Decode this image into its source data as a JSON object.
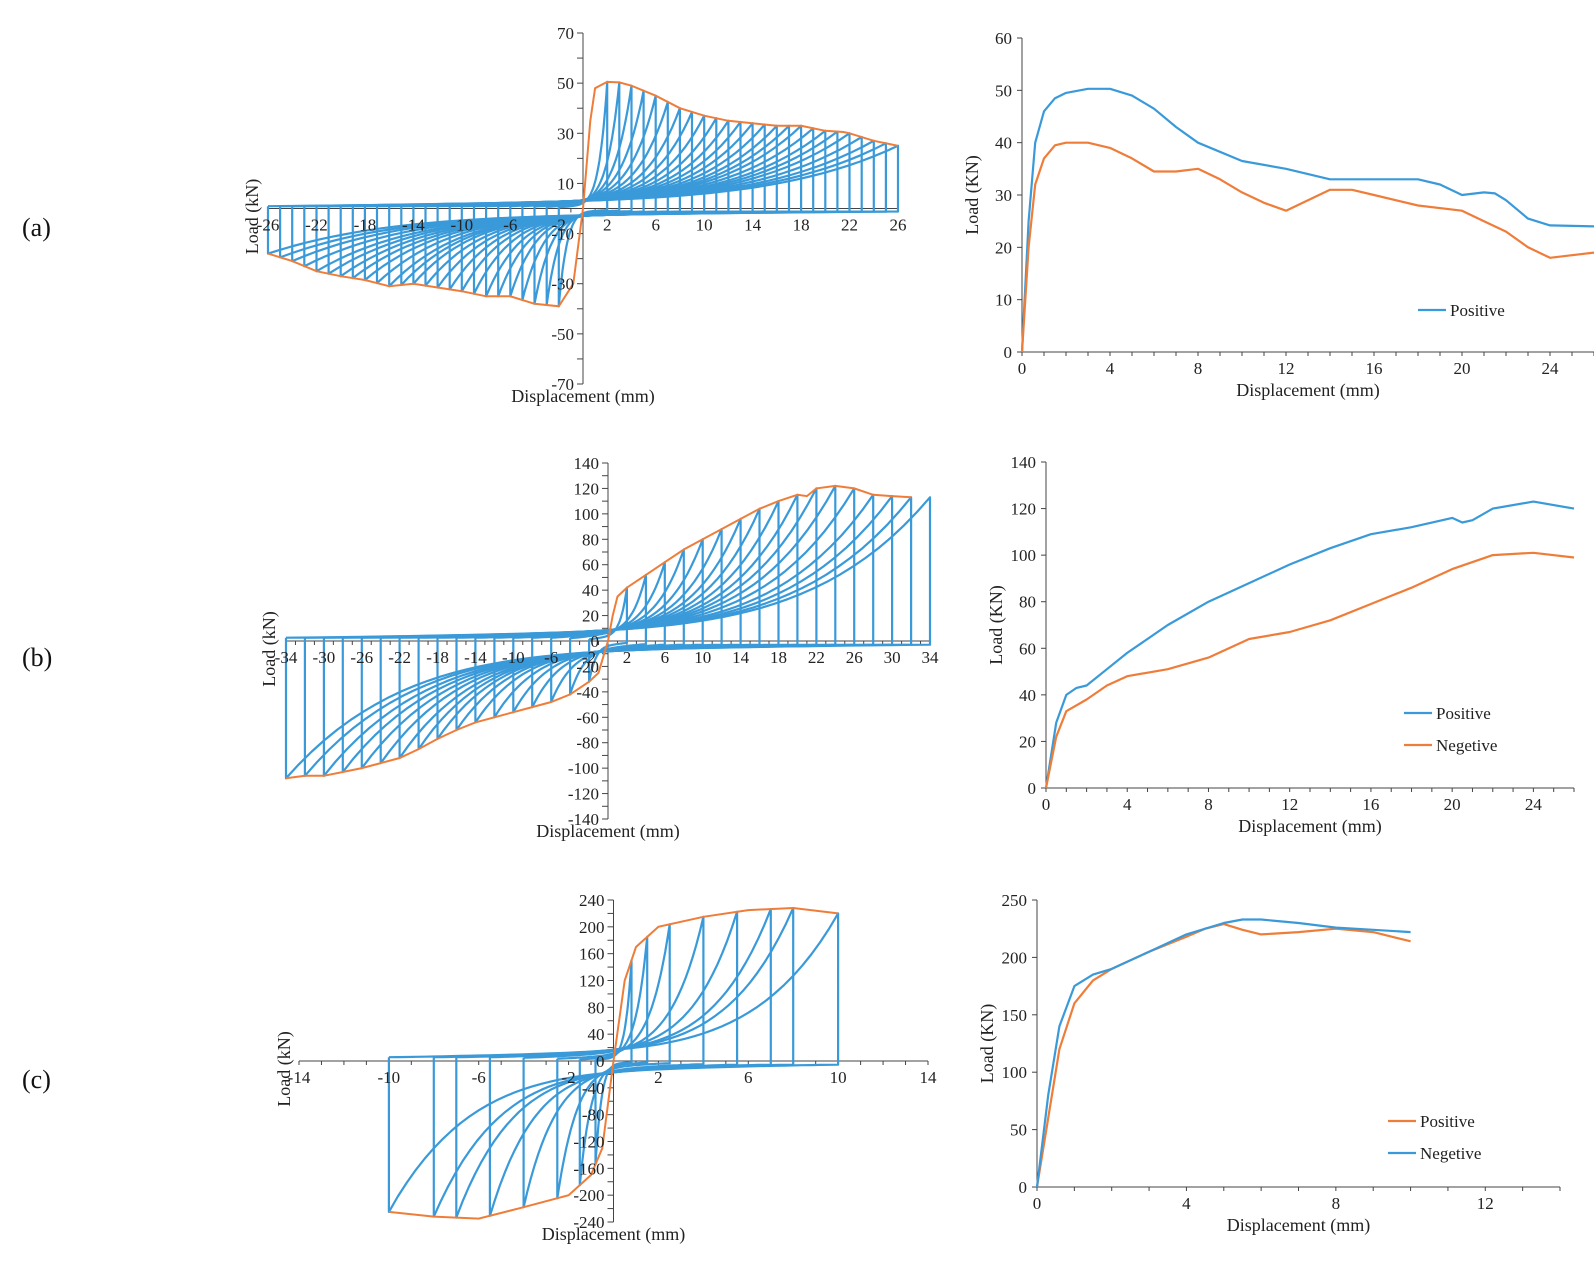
{
  "figure": {
    "panels": [
      "(a)",
      "(b)",
      "(c)"
    ],
    "colors": {
      "blue": "#3a9ad9",
      "orange": "#ef7d3a",
      "axis": "#444444"
    }
  },
  "chart_data": [
    {
      "id": "a-hysteresis",
      "type": "line",
      "title": "",
      "xlabel": "Displacement (mm)",
      "ylabel": "Load (kN)",
      "xlim": [
        -26,
        26
      ],
      "ylim": [
        -70,
        70
      ],
      "xticks": [
        "-26",
        "-22",
        "-18",
        "-14",
        "-10",
        "-6",
        "-2",
        "2",
        "6",
        "10",
        "14",
        "18",
        "22",
        "26"
      ],
      "xtick_values": [
        -26,
        -22,
        -18,
        -14,
        -10,
        -6,
        -2,
        2,
        6,
        10,
        14,
        18,
        22,
        26
      ],
      "yticks": [
        "70",
        "50",
        "30",
        "10",
        "-10",
        "-30",
        "-50",
        "-70"
      ],
      "ytick_values": [
        70,
        50,
        30,
        10,
        -10,
        -30,
        -50,
        -70
      ],
      "loop_amplitudes": [
        2,
        3,
        4,
        5,
        6,
        7,
        8,
        9,
        10,
        11,
        12,
        13,
        14,
        15,
        16,
        17,
        18,
        19,
        20,
        21,
        22,
        23,
        24,
        25,
        26
      ],
      "envelope_pos": {
        "x": [
          0,
          0.6,
          1,
          2,
          3,
          4,
          6,
          8,
          10,
          12,
          14,
          16,
          18,
          20,
          21.5,
          22,
          24,
          26
        ],
        "y": [
          0,
          35,
          48,
          50.5,
          50.3,
          49,
          45,
          40,
          37,
          35,
          34,
          33,
          33,
          31,
          30.5,
          30,
          27,
          25
        ]
      },
      "envelope_neg": {
        "x": [
          0,
          -0.8,
          -2,
          -4,
          -6,
          -8,
          -10,
          -12,
          -14,
          -16,
          -18,
          -20,
          -22,
          -24,
          -26
        ],
        "y": [
          0,
          -30,
          -39,
          -38,
          -35,
          -35,
          -33,
          -31.5,
          -30,
          -31,
          -28.5,
          -27,
          -25,
          -21,
          -18
        ]
      }
    },
    {
      "id": "a-skeleton",
      "type": "line",
      "xlabel": "Displacement (mm)",
      "ylabel": "Load (KN)",
      "xlim": [
        0,
        26
      ],
      "ylim": [
        0,
        60
      ],
      "xticks": [
        "0",
        "4",
        "8",
        "12",
        "16",
        "20",
        "24"
      ],
      "xtick_values": [
        0,
        4,
        8,
        12,
        16,
        20,
        24
      ],
      "yticks": [
        "0",
        "10",
        "20",
        "30",
        "40",
        "50",
        "60"
      ],
      "ytick_values": [
        0,
        10,
        20,
        30,
        40,
        50,
        60
      ],
      "legend": [
        "Positive"
      ],
      "series": [
        {
          "name": "Positive",
          "color": "blue",
          "x": [
            0,
            0.3,
            0.6,
            1,
            1.5,
            2,
            3,
            4,
            5,
            6,
            7,
            8,
            10,
            12,
            14,
            16,
            18,
            19,
            20,
            21,
            21.5,
            22,
            23,
            24,
            26
          ],
          "y": [
            0,
            25,
            40,
            46,
            48.5,
            49.5,
            50.3,
            50.3,
            49,
            46.5,
            43,
            40,
            36.5,
            35,
            33,
            33,
            33,
            32,
            30,
            30.5,
            30.3,
            29,
            25.5,
            24.2,
            24
          ]
        },
        {
          "name": "",
          "color": "orange",
          "x": [
            0,
            0.3,
            0.6,
            1,
            1.5,
            2,
            3,
            4,
            5,
            6,
            7,
            8,
            9,
            10,
            11,
            12,
            13,
            14,
            15,
            16,
            18,
            20,
            21,
            22,
            23,
            24,
            25,
            26
          ],
          "y": [
            0,
            20,
            32,
            37,
            39.5,
            40,
            40,
            39,
            37,
            34.5,
            34.5,
            35,
            33,
            30.5,
            28.5,
            27,
            29,
            31,
            31,
            30,
            28,
            27,
            25,
            23,
            20,
            18,
            18.5,
            19
          ]
        }
      ]
    },
    {
      "id": "b-hysteresis",
      "type": "line",
      "xlabel": "Displacement (mm)",
      "ylabel": "Load (kN)",
      "xlim": [
        -34,
        34
      ],
      "ylim": [
        -140,
        140
      ],
      "xticks": [
        "-34",
        "-30",
        "-26",
        "-22",
        "-18",
        "-14",
        "-10",
        "-6",
        "-2",
        "2",
        "6",
        "10",
        "14",
        "18",
        "22",
        "26",
        "30",
        "34"
      ],
      "xtick_values": [
        -34,
        -30,
        -26,
        -22,
        -18,
        -14,
        -10,
        -6,
        -2,
        2,
        6,
        10,
        14,
        18,
        22,
        26,
        30,
        34
      ],
      "yticks": [
        "140",
        "120",
        "100",
        "80",
        "60",
        "40",
        "20",
        "0",
        "-20",
        "-40",
        "-60",
        "-80",
        "-100",
        "-120",
        "-140"
      ],
      "ytick_values": [
        140,
        120,
        100,
        80,
        60,
        40,
        20,
        0,
        -20,
        -40,
        -60,
        -80,
        -100,
        -120,
        -140
      ],
      "loop_amplitudes": [
        2,
        4,
        6,
        8,
        10,
        12,
        14,
        16,
        18,
        20,
        22,
        24,
        26,
        28,
        30,
        32,
        34
      ],
      "envelope_pos": {
        "x": [
          0,
          0.5,
          1,
          2,
          4,
          6,
          8,
          10,
          12,
          14,
          16,
          18,
          20,
          21,
          22,
          24,
          26,
          28,
          30,
          32
        ],
        "y": [
          0,
          20,
          35,
          42,
          52,
          62,
          72,
          80,
          88,
          96,
          104,
          110,
          115,
          114,
          120,
          122,
          120,
          115,
          114,
          113
        ]
      },
      "envelope_neg": {
        "x": [
          0,
          -1,
          -2,
          -4,
          -6,
          -8,
          -10,
          -12,
          -14,
          -16,
          -18,
          -20,
          -22,
          -24,
          -26,
          -28,
          -30,
          -32,
          -34
        ],
        "y": [
          0,
          -25,
          -32,
          -42,
          -48,
          -52,
          -56,
          -60,
          -64,
          -70,
          -77,
          -85,
          -92,
          -96,
          -100,
          -103,
          -106,
          -106,
          -108
        ]
      }
    },
    {
      "id": "b-skeleton",
      "type": "line",
      "xlabel": "Displacement (mm)",
      "ylabel": "Load (KN)",
      "xlim": [
        0,
        26
      ],
      "ylim": [
        0,
        140
      ],
      "xticks": [
        "0",
        "4",
        "8",
        "12",
        "16",
        "20",
        "24"
      ],
      "xtick_values": [
        0,
        4,
        8,
        12,
        16,
        20,
        24
      ],
      "yticks": [
        "0",
        "20",
        "40",
        "60",
        "80",
        "100",
        "120",
        "140"
      ],
      "ytick_values": [
        0,
        20,
        40,
        60,
        80,
        100,
        120,
        140
      ],
      "legend": [
        "Positive",
        "Negetive"
      ],
      "series": [
        {
          "name": "Positive",
          "color": "blue",
          "x": [
            0,
            0.5,
            1,
            1.5,
            2,
            3,
            4,
            6,
            8,
            10,
            12,
            14,
            16,
            18,
            20,
            20.5,
            21,
            22,
            24,
            26
          ],
          "y": [
            0,
            28,
            40,
            43,
            44,
            51,
            58,
            70,
            80,
            88,
            96,
            103,
            109,
            112,
            116,
            114,
            115,
            120,
            123,
            120
          ]
        },
        {
          "name": "Negetive",
          "color": "orange",
          "x": [
            0,
            0.5,
            1,
            2,
            3,
            4,
            6,
            8,
            10,
            12,
            14,
            16,
            18,
            20,
            22,
            24,
            26
          ],
          "y": [
            0,
            22,
            33,
            38,
            44,
            48,
            51,
            56,
            64,
            67,
            72,
            79,
            86,
            94,
            100,
            101,
            99
          ]
        }
      ]
    },
    {
      "id": "c-hysteresis",
      "type": "line",
      "xlabel": "Displacement (mm)",
      "ylabel": "Load (kN)",
      "xlim": [
        -14,
        14
      ],
      "ylim": [
        -240,
        240
      ],
      "xticks": [
        "-14",
        "-10",
        "-6",
        "-2",
        "2",
        "6",
        "10",
        "14"
      ],
      "xtick_values": [
        -14,
        -10,
        -6,
        -2,
        2,
        6,
        10,
        14
      ],
      "yticks": [
        "240",
        "200",
        "160",
        "120",
        "80",
        "40",
        "0",
        "-40",
        "-80",
        "-120",
        "-160",
        "-200",
        "-240"
      ],
      "ytick_values": [
        240,
        200,
        160,
        120,
        80,
        40,
        0,
        -40,
        -80,
        -120,
        -160,
        -200,
        -240
      ],
      "loop_amplitudes": [
        0.8,
        1.5,
        2.5,
        4,
        5.5,
        7,
        8,
        10
      ],
      "envelope_pos": {
        "x": [
          0,
          0.5,
          1,
          2,
          4,
          6,
          8,
          10
        ],
        "y": [
          0,
          120,
          170,
          200,
          215,
          225,
          228,
          220
        ]
      },
      "envelope_neg": {
        "x": [
          0,
          -0.5,
          -1,
          -2,
          -4,
          -6,
          -8,
          -10
        ],
        "y": [
          0,
          -130,
          -170,
          -200,
          -218,
          -235,
          -232,
          -225
        ]
      }
    },
    {
      "id": "c-skeleton",
      "type": "line",
      "xlabel": "Displacement (mm)",
      "ylabel": "Load (KN)",
      "xlim": [
        0,
        14
      ],
      "ylim": [
        0,
        250
      ],
      "xticks": [
        "0",
        "4",
        "8",
        "12"
      ],
      "xtick_values": [
        0,
        4,
        8,
        12
      ],
      "yticks": [
        "0",
        "50",
        "100",
        "150",
        "200",
        "250"
      ],
      "ytick_values": [
        0,
        50,
        100,
        150,
        200,
        250
      ],
      "legend": [
        "Positive",
        "Negetive"
      ],
      "series": [
        {
          "name": "Positive",
          "color": "orange",
          "x": [
            0,
            0.3,
            0.6,
            1,
            1.5,
            2,
            3,
            4,
            4.5,
            5,
            5.5,
            6,
            7,
            8,
            9,
            10
          ],
          "y": [
            0,
            60,
            120,
            160,
            180,
            190,
            205,
            218,
            225,
            229,
            224,
            220,
            222,
            225,
            222,
            214
          ]
        },
        {
          "name": "Negetive",
          "color": "blue",
          "x": [
            0,
            0.3,
            0.6,
            1,
            1.5,
            2,
            3,
            4,
            5,
            5.5,
            6,
            7,
            8,
            9,
            10
          ],
          "y": [
            0,
            80,
            140,
            175,
            185,
            190,
            205,
            220,
            230,
            233,
            233,
            230,
            226,
            224,
            222
          ]
        }
      ]
    }
  ]
}
